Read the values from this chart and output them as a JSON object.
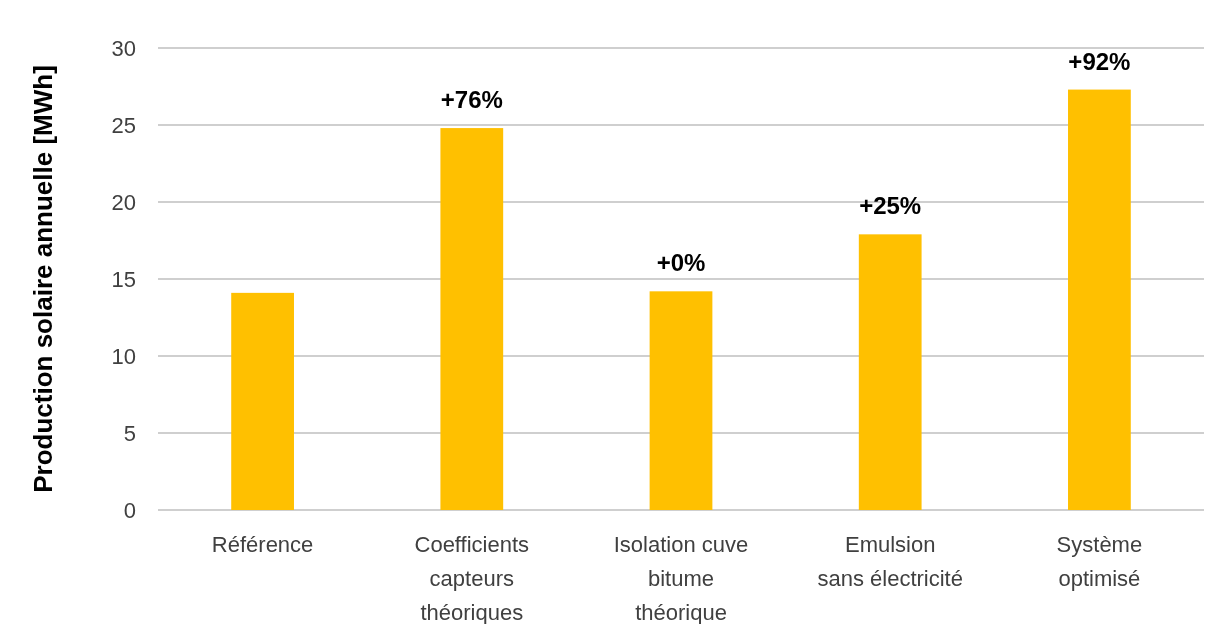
{
  "chart_data": {
    "type": "bar",
    "ylabel": "Production solaire annuelle [MWh]",
    "categories": [
      "Référence",
      "Coefficients\ncapteurs\nthéoriques",
      "Isolation cuve\nbitume\nthéorique",
      "Emulsion\nsans électricité",
      "Système\noptimisé"
    ],
    "values": [
      14.1,
      24.8,
      14.2,
      17.9,
      27.3
    ],
    "annotations": [
      {
        "text": "+76%",
        "x": "Coefficients\ncapteurs\nthéoriques",
        "y": 24.8
      },
      {
        "text": "+0%",
        "x": "Isolation cuve\nbitume\nthéorique",
        "y": 14.2
      },
      {
        "text": "+25%",
        "x": "Emulsion\nsans électricité",
        "y": 17.9
      },
      {
        "text": "+92%",
        "x": "Système\noptimisé",
        "y": 27.3
      }
    ],
    "color": "#ffc000",
    "ylim": [
      0,
      30
    ],
    "yticks": [
      0,
      5,
      10,
      15,
      20,
      25,
      30
    ],
    "grid": "y"
  }
}
